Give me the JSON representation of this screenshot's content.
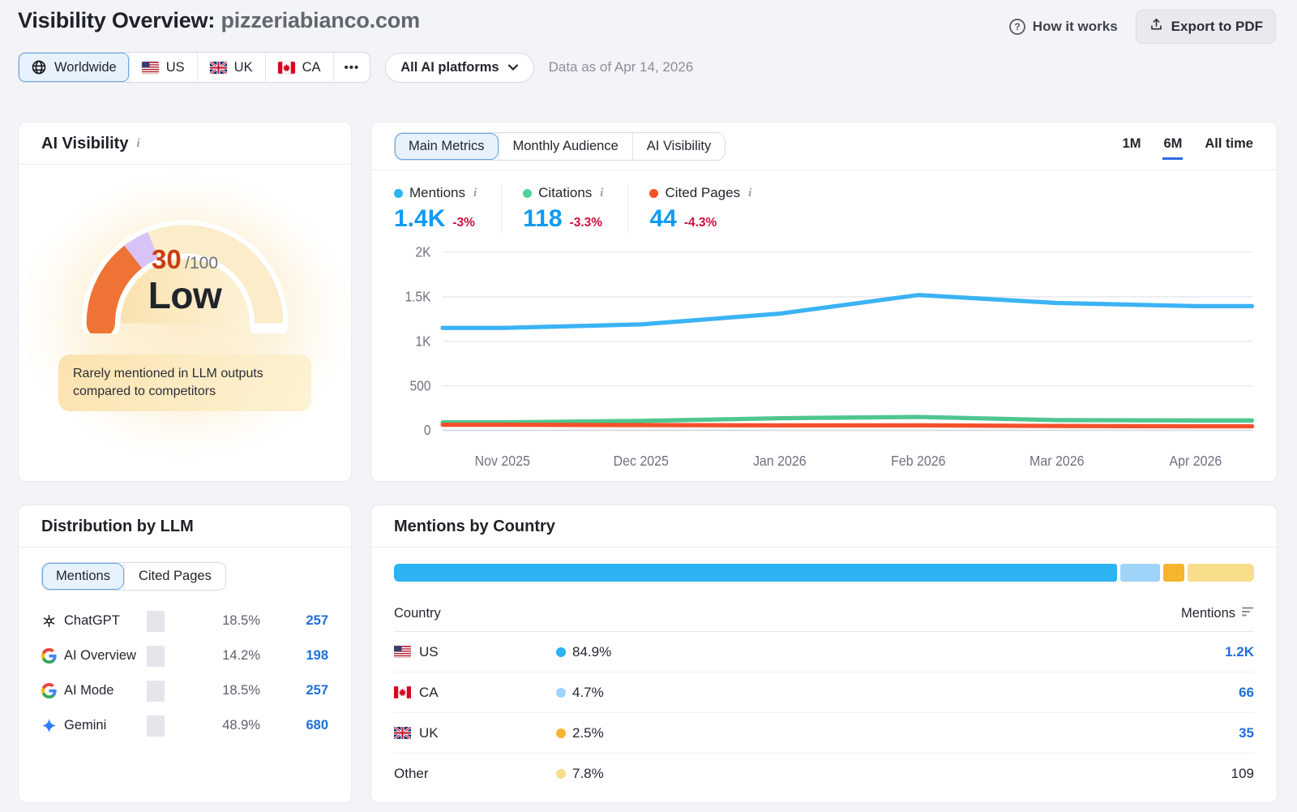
{
  "header": {
    "title_prefix": "Visibility Overview:",
    "domain": "pizzeriabianco.com",
    "how_it_works": "How it works",
    "export_pdf": "Export to PDF"
  },
  "filters": {
    "regions": [
      {
        "label": "Worldwide",
        "icon": "globe",
        "selected": true
      },
      {
        "label": "US",
        "flag": "us",
        "selected": false
      },
      {
        "label": "UK",
        "flag": "uk",
        "selected": false
      },
      {
        "label": "CA",
        "flag": "ca",
        "selected": false
      }
    ],
    "more_label": "•••",
    "platforms_dropdown": "All AI platforms",
    "data_as_of": "Data as of Apr 14, 2026"
  },
  "score_card": {
    "title": "AI Visibility",
    "score": "30",
    "score_max": "/100",
    "level": "Low",
    "description": "Rarely mentioned in LLM outputs compared to competitors",
    "gauge_colors": {
      "filled": "#ef7334",
      "marker": "#d9c2f6",
      "rest": "#fbecca"
    }
  },
  "metrics_card": {
    "tabs": [
      {
        "label": "Main Metrics",
        "selected": true
      },
      {
        "label": "Monthly Audience",
        "selected": false
      },
      {
        "label": "AI Visibility",
        "selected": false
      }
    ],
    "ranges": [
      {
        "label": "1M",
        "selected": false
      },
      {
        "label": "6M",
        "selected": true
      },
      {
        "label": "All time",
        "selected": false
      }
    ],
    "metrics": [
      {
        "label": "Mentions",
        "value": "1.4K",
        "delta": "-3%",
        "dot_color": "#2bb3f3"
      },
      {
        "label": "Citations",
        "value": "118",
        "delta": "-3.3%",
        "dot_color": "#4fd598"
      },
      {
        "label": "Cited Pages",
        "value": "44",
        "delta": "-4.3%",
        "dot_color": "#f4502c"
      }
    ]
  },
  "chart_data": {
    "type": "line",
    "x": [
      "Nov 2025",
      "Dec 2025",
      "Jan 2026",
      "Feb 2026",
      "Mar 2026",
      "Apr 2026"
    ],
    "series": [
      {
        "name": "Mentions",
        "color": "#3bb3f4",
        "values": [
          1150,
          1190,
          1310,
          1520,
          1430,
          1395
        ]
      },
      {
        "name": "Citations",
        "color": "#4fc690",
        "values": [
          90,
          105,
          135,
          150,
          115,
          110
        ]
      },
      {
        "name": "Cited Pages",
        "color": "#f4502c",
        "values": [
          62,
          58,
          55,
          55,
          48,
          45
        ]
      }
    ],
    "ylim": [
      0,
      2000
    ],
    "yticks": [
      {
        "v": 0,
        "label": "0"
      },
      {
        "v": 500,
        "label": "500"
      },
      {
        "v": 1000,
        "label": "1K"
      },
      {
        "v": 1500,
        "label": "1.5K"
      },
      {
        "v": 2000,
        "label": "2K"
      }
    ],
    "grid": true,
    "legend_position": "top-metrics"
  },
  "llm_card": {
    "title": "Distribution by LLM",
    "tabs": [
      {
        "label": "Mentions",
        "selected": true
      },
      {
        "label": "Cited Pages",
        "selected": false
      }
    ],
    "rows": [
      {
        "name": "ChatGPT",
        "icon": "openai",
        "percent": "18.5%",
        "percent_value": 18.5,
        "value": "257"
      },
      {
        "name": "AI Overview",
        "icon": "google",
        "percent": "14.2%",
        "percent_value": 14.2,
        "value": "198"
      },
      {
        "name": "AI Mode",
        "icon": "google",
        "percent": "18.5%",
        "percent_value": 18.5,
        "value": "257"
      },
      {
        "name": "Gemini",
        "icon": "gemini",
        "percent": "48.9%",
        "percent_value": 48.9,
        "value": "680"
      }
    ]
  },
  "country_card": {
    "title": "Mentions by Country",
    "columns": {
      "country": "Country",
      "mentions": "Mentions"
    },
    "rows": [
      {
        "country": "US",
        "flag": "us",
        "percent": "84.9%",
        "percent_value": 84.9,
        "dot_color": "#2bb3f3",
        "value": "1.2K",
        "link": true
      },
      {
        "country": "CA",
        "flag": "ca",
        "percent": "4.7%",
        "percent_value": 4.7,
        "dot_color": "#9fd3f8",
        "value": "66",
        "link": true
      },
      {
        "country": "UK",
        "flag": "uk",
        "percent": "2.5%",
        "percent_value": 2.5,
        "dot_color": "#f6b52e",
        "value": "35",
        "link": true
      },
      {
        "country": "Other",
        "flag": null,
        "percent": "7.8%",
        "percent_value": 7.8,
        "dot_color": "#f8dd8b",
        "value": "109",
        "link": false
      }
    ]
  }
}
